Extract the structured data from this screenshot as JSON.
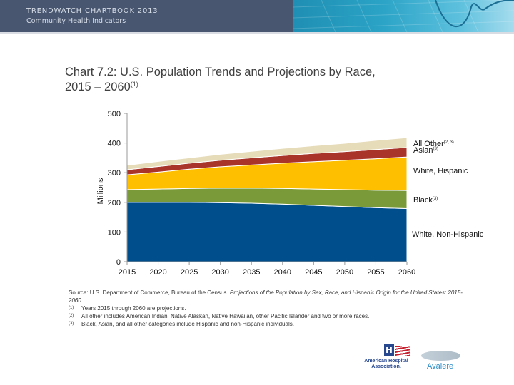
{
  "header": {
    "title": "TRENDWATCH CHARTBOOK 2013",
    "subtitle": "Community Health Indicators"
  },
  "chart_data": {
    "type": "area",
    "stacked": true,
    "title": "Chart 7.2: U.S. Population Trends and Projections by Race,",
    "title_line2": "2015 – 2060",
    "title_footnote": "(1)",
    "xlabel": "",
    "ylabel": "Millions",
    "ylim": [
      0,
      500
    ],
    "yticks": [
      0,
      100,
      200,
      300,
      400,
      500
    ],
    "x": [
      2015,
      2020,
      2025,
      2030,
      2035,
      2040,
      2045,
      2050,
      2055,
      2060
    ],
    "grid": false,
    "legend_placement": "right (direct labels)",
    "series": [
      {
        "name": "White, Non-Hispanic",
        "footnote": "",
        "color": "#004f8c",
        "values": [
          200,
          200,
          200,
          199,
          197,
          194,
          190,
          186,
          182,
          179
        ]
      },
      {
        "name": "Black",
        "footnote": "(3)",
        "color": "#7a9a3a",
        "values": [
          43,
          45,
          47,
          49,
          51,
          53,
          55,
          57,
          59,
          61
        ]
      },
      {
        "name": "White, Hispanic",
        "footnote": "",
        "color": "#fdbf00",
        "values": [
          50,
          57,
          65,
          72,
          78,
          85,
          92,
          99,
          106,
          113
        ]
      },
      {
        "name": "Asian",
        "footnote": "(3)",
        "color": "#a8342a",
        "values": [
          17,
          19,
          20,
          22,
          24,
          26,
          28,
          29,
          31,
          32
        ]
      },
      {
        "name": "All Other",
        "footnote": "(2, 3)",
        "color": "#e6dcba",
        "values": [
          15,
          17,
          18,
          20,
          22,
          24,
          26,
          28,
          31,
          33
        ]
      }
    ]
  },
  "footnotes": {
    "source_prefix": "Source: U.S. Department of Commerce, Bureau of the Census. ",
    "source_italic": "Projections of the Population by Sex, Race, and Hispanic Origin for the United States: 2015-2060.",
    "notes": [
      {
        "num": "(1)",
        "text": "Years 2015 through 2060 are projections."
      },
      {
        "num": "(2)",
        "text": "All other includes American Indian, Native Alaskan, Native Hawaiian, other Pacific Islander and two or more races."
      },
      {
        "num": "(3)",
        "text": "Black, Asian, and all other categories include Hispanic and non-Hispanic individuals."
      }
    ]
  },
  "logos": {
    "aha_mark": "H",
    "aha_text_line1": "American Hospital",
    "aha_text_line2": "Association.",
    "avalere_text": "Avalere"
  }
}
